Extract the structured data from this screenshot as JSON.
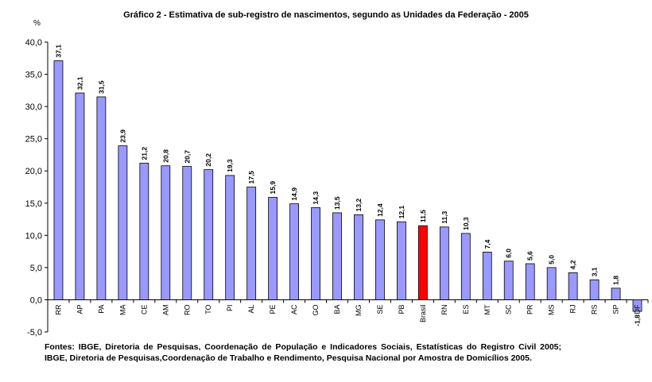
{
  "chart_data": {
    "type": "bar",
    "title": "Gráfico 2 - Estimativa de sub-registro de nascimentos, segundo as Unidades da Federação - 2005",
    "ylabel": "%",
    "xlabel": "",
    "ylim": [
      -5,
      40
    ],
    "yticks": [
      "-5,0",
      "0,0",
      "5,0",
      "10,0",
      "15,0",
      "20,0",
      "25,0",
      "30,0",
      "35,0",
      "40,0"
    ],
    "grid": false,
    "legend": "none",
    "categories": [
      "RR",
      "AP",
      "PA",
      "MA",
      "CE",
      "AM",
      "RO",
      "TO",
      "PI",
      "AL",
      "PE",
      "AC",
      "GO",
      "BA",
      "MG",
      "SE",
      "PB",
      "Brasil",
      "RN",
      "ES",
      "MT",
      "SC",
      "PR",
      "MS",
      "RJ",
      "RS",
      "SP",
      "DF"
    ],
    "values": [
      37.1,
      32.1,
      31.5,
      23.9,
      21.2,
      20.8,
      20.7,
      20.2,
      19.3,
      17.5,
      15.9,
      14.9,
      14.3,
      13.5,
      13.2,
      12.4,
      12.1,
      11.5,
      11.3,
      10.3,
      7.4,
      6.0,
      5.6,
      5.0,
      4.2,
      3.1,
      1.8,
      -1.8
    ],
    "value_labels": [
      "37,1",
      "32,1",
      "31,5",
      "23,9",
      "21,2",
      "20,8",
      "20,7",
      "20,2",
      "19,3",
      "17,5",
      "15,9",
      "14,9",
      "14,3",
      "13,5",
      "13,2",
      "12,4",
      "12,1",
      "11,5",
      "11,3",
      "10,3",
      "7,4",
      "6,0",
      "5,6",
      "5,0",
      "4,2",
      "3,1",
      "1,8",
      "-1,8"
    ],
    "highlight_category": "Brasil",
    "colors": {
      "bar": "#9999ff",
      "highlight": "#ff0000",
      "outline": "#000000"
    }
  },
  "footer": {
    "source": "Fontes: IBGE, Diretoria de Pesquisas, Coordenação de População e Indicadores Sociais, Estatísticas do Registro Civil 2005; IBGE, Diretoria de Pesquisas,Coordenação de Trabalho e Rendimento, Pesquisa Nacional por Amostra de Domicílios 2005."
  }
}
